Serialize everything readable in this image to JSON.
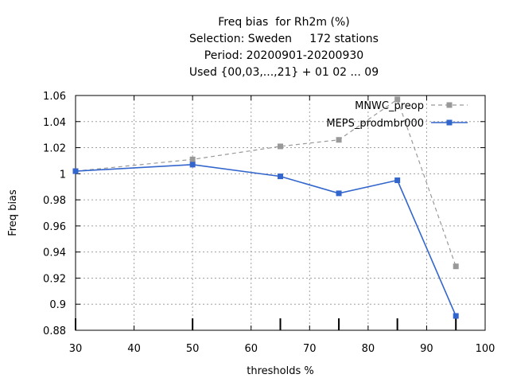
{
  "chart_data": {
    "type": "line",
    "title_lines": [
      "Freq bias  for Rh2m (%)",
      "Selection: Sweden     172 stations",
      "Period: 20200901-20200930",
      "Used {00,03,...,21} + 01 02 ... 09"
    ],
    "xlabel": "thresholds %",
    "ylabel": "Freq bias",
    "xlim": [
      30,
      100
    ],
    "ylim": [
      0.88,
      1.06
    ],
    "x_ticks": [
      30,
      40,
      50,
      60,
      70,
      80,
      90,
      100
    ],
    "y_ticks": [
      0.88,
      0.9,
      0.92,
      0.94,
      0.96,
      0.98,
      1,
      1.02,
      1.04,
      1.06
    ],
    "y_tick_labels": [
      "0.88",
      "0.9",
      "0.92",
      "0.94",
      "0.96",
      "0.98",
      "1",
      "1.02",
      "1.04",
      "1.06"
    ],
    "data_x_marks": [
      30,
      50,
      65,
      75,
      85,
      95
    ],
    "grid": true,
    "legend_position": "top-right",
    "series": [
      {
        "name": "MNWC_preop",
        "color": "#999999",
        "style": "dashed",
        "x": [
          30,
          50,
          65,
          75,
          85,
          95
        ],
        "y": [
          1.002,
          1.011,
          1.021,
          1.026,
          1.057,
          0.929
        ]
      },
      {
        "name": "MEPS_prodmbr000",
        "color": "#3366cc",
        "style": "solid",
        "x": [
          30,
          50,
          65,
          75,
          85,
          95
        ],
        "y": [
          1.002,
          1.007,
          0.998,
          0.985,
          0.995,
          0.891
        ]
      }
    ]
  }
}
